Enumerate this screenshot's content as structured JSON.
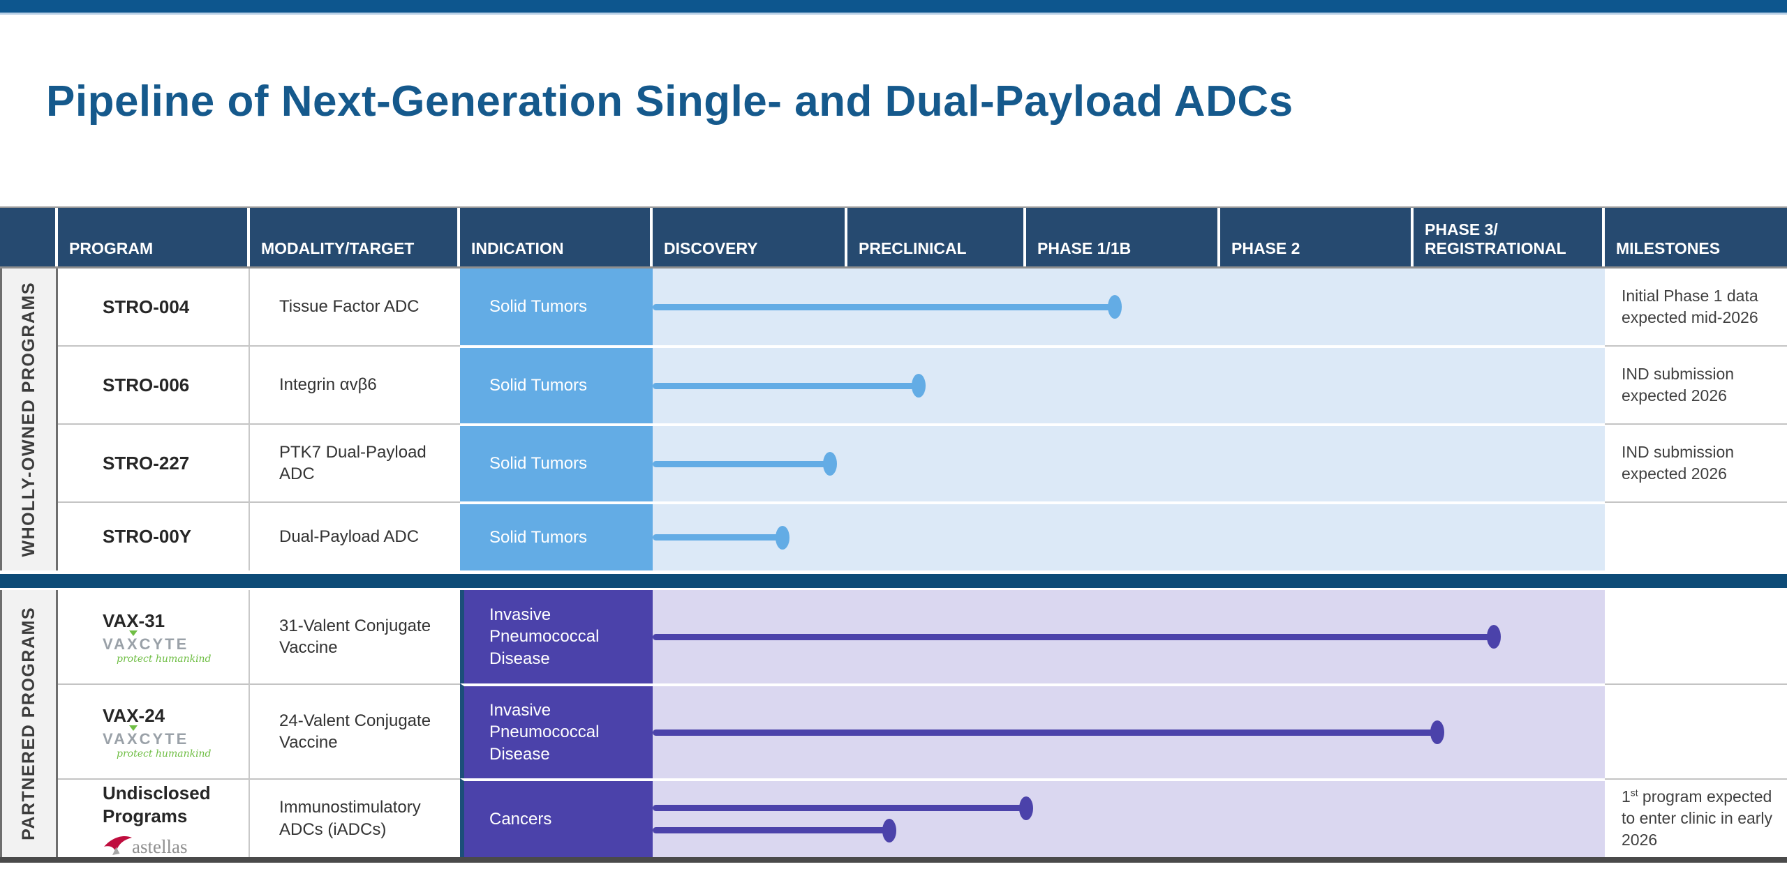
{
  "slide": {
    "title": "Pipeline of Next-Generation Single- and Dual-Payload ADCs"
  },
  "colors": {
    "top_bar": "#0d568e",
    "title_text": "#15598c",
    "header_bg": "#264a70",
    "blue_accent": "#63ace5",
    "blue_track_bg": "#dce9f7",
    "purple_accent": "#4b42aa",
    "purple_track_bg": "#dad7f0",
    "section_divider": "#0d4b77",
    "side_label_bg": "#f2f2f2",
    "vaxcyte_green": "#6fbe44",
    "astellas_red": "#bf0d3e"
  },
  "table": {
    "headers": [
      "",
      "PROGRAM",
      "MODALITY/TARGET",
      "INDICATION",
      "DISCOVERY",
      "PRECLINICAL",
      "PHASE 1/1B",
      "PHASE 2",
      "PHASE 3/ REGISTRATIONAL",
      "MILESTONES"
    ],
    "sections": [
      {
        "label": "WHOLLY-OWNED PROGRAMS",
        "theme": "blue",
        "rows": [
          {
            "program": "STRO-004",
            "modality": "Tissue Factor ADC",
            "indication": "Solid Tumors",
            "bars": [
              {
                "width_pct": 48.6,
                "stage_reached": "Phase 1/1B"
              }
            ],
            "milestone": "Initial Phase 1 data expected mid-2026"
          },
          {
            "program": "STRO-006",
            "modality": "Integrin αvβ6",
            "indication": "Solid Tumors",
            "bars": [
              {
                "width_pct": 28,
                "stage_reached": "Preclinical"
              }
            ],
            "milestone": "IND submission expected 2026"
          },
          {
            "program": "STRO-227",
            "modality": "PTK7 Dual-Payload ADC",
            "indication": "Solid Tumors",
            "bars": [
              {
                "width_pct": 18.7,
                "stage_reached": "Discovery (late)"
              }
            ],
            "milestone": "IND submission expected 2026"
          },
          {
            "program": "STRO-00Y",
            "modality": "Dual-Payload ADC",
            "indication": "Solid Tumors",
            "bars": [
              {
                "width_pct": 13.7,
                "stage_reached": "Discovery"
              }
            ],
            "milestone": ""
          }
        ]
      },
      {
        "label": "PARTNERED PROGRAMS",
        "theme": "purple",
        "rows": [
          {
            "program": "VAX-31",
            "partner_logo": {
              "word": "VAXCYTE",
              "word_pre": "VA",
              "word_x": "X",
              "word_post": "CYTE",
              "tagline": "protect humankind"
            },
            "modality": "31-Valent Conjugate Vaccine",
            "indication": "Invasive Pneumococcal Disease",
            "bars": [
              {
                "width_pct": 88.4,
                "stage_reached": "Phase 3/Registrational"
              }
            ],
            "milestone": ""
          },
          {
            "program": "VAX-24",
            "partner_logo": {
              "word": "VAXCYTE",
              "word_pre": "VA",
              "word_x": "X",
              "word_post": "CYTE",
              "tagline": "protect humankind"
            },
            "modality": "24-Valent Conjugate Vaccine",
            "indication": "Invasive Pneumococcal Disease",
            "bars": [
              {
                "width_pct": 82.5,
                "stage_reached": "Phase 3/Registrational"
              }
            ],
            "milestone": ""
          },
          {
            "program": "Undisclosed Programs",
            "partner_logo": {
              "word": "astellas"
            },
            "modality": "Immunostimulatory ADCs (iADCs)",
            "indication": "Cancers",
            "bars": [
              {
                "width_pct": 39.3,
                "stage_reached": "entering Phase 1/1B"
              },
              {
                "width_pct": 24.9,
                "stage_reached": "Preclinical"
              }
            ],
            "milestone_parts": {
              "pre": "1",
              "sup": "st",
              "rest": " program expected to enter clinic in early 2026"
            }
          }
        ]
      }
    ]
  },
  "chart_data": {
    "type": "bar",
    "title": "Pipeline of Next-Generation Single- and Dual-Payload ADCs",
    "categories": [
      "STRO-004",
      "STRO-006",
      "STRO-227",
      "STRO-00Y",
      "VAX-31",
      "VAX-24",
      "Undisclosed Programs (bar 1)",
      "Undisclosed Programs (bar 2)"
    ],
    "values": [
      48.6,
      28,
      18.7,
      13.7,
      88.4,
      82.5,
      39.3,
      24.9
    ],
    "value_meaning": "bar length as % of the Discovery-to-Phase 3 stage axis",
    "stage_axis_labels": [
      "DISCOVERY",
      "PRECLINICAL",
      "PHASE 1/1B",
      "PHASE 2",
      "PHASE 3/ REGISTRATIONAL"
    ],
    "stage_boundaries_pct": [
      0,
      20.5,
      39.2,
      59.6,
      79.9,
      100
    ],
    "legend_position": "none",
    "grid": false
  }
}
